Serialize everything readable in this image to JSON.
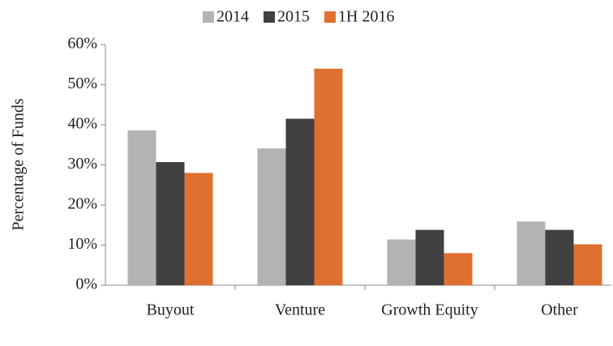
{
  "chart_data": {
    "type": "bar",
    "y_label": "Percentage of Funds",
    "categories": [
      "Buyout",
      "Venture",
      "Growth Equity",
      "Other"
    ],
    "series": [
      {
        "name": "2014",
        "color": "#b3b3b3",
        "values": [
          38.6,
          34.1,
          11.4,
          15.9
        ]
      },
      {
        "name": "2015",
        "color": "#404040",
        "values": [
          30.7,
          41.5,
          13.8,
          13.8
        ]
      },
      {
        "name": "1H 2016",
        "color": "#e07030",
        "values": [
          28,
          54,
          8,
          10.2
        ]
      }
    ],
    "ylim": [
      0,
      60
    ],
    "yticks": [
      {
        "value": 0,
        "label": "0%"
      },
      {
        "value": 10,
        "label": "10%"
      },
      {
        "value": 20,
        "label": "20%"
      },
      {
        "value": 30,
        "label": "30%"
      },
      {
        "value": 40,
        "label": "40%"
      },
      {
        "value": 50,
        "label": "50%"
      },
      {
        "value": 60,
        "label": "60%"
      }
    ],
    "grid": false,
    "legend": "top"
  }
}
